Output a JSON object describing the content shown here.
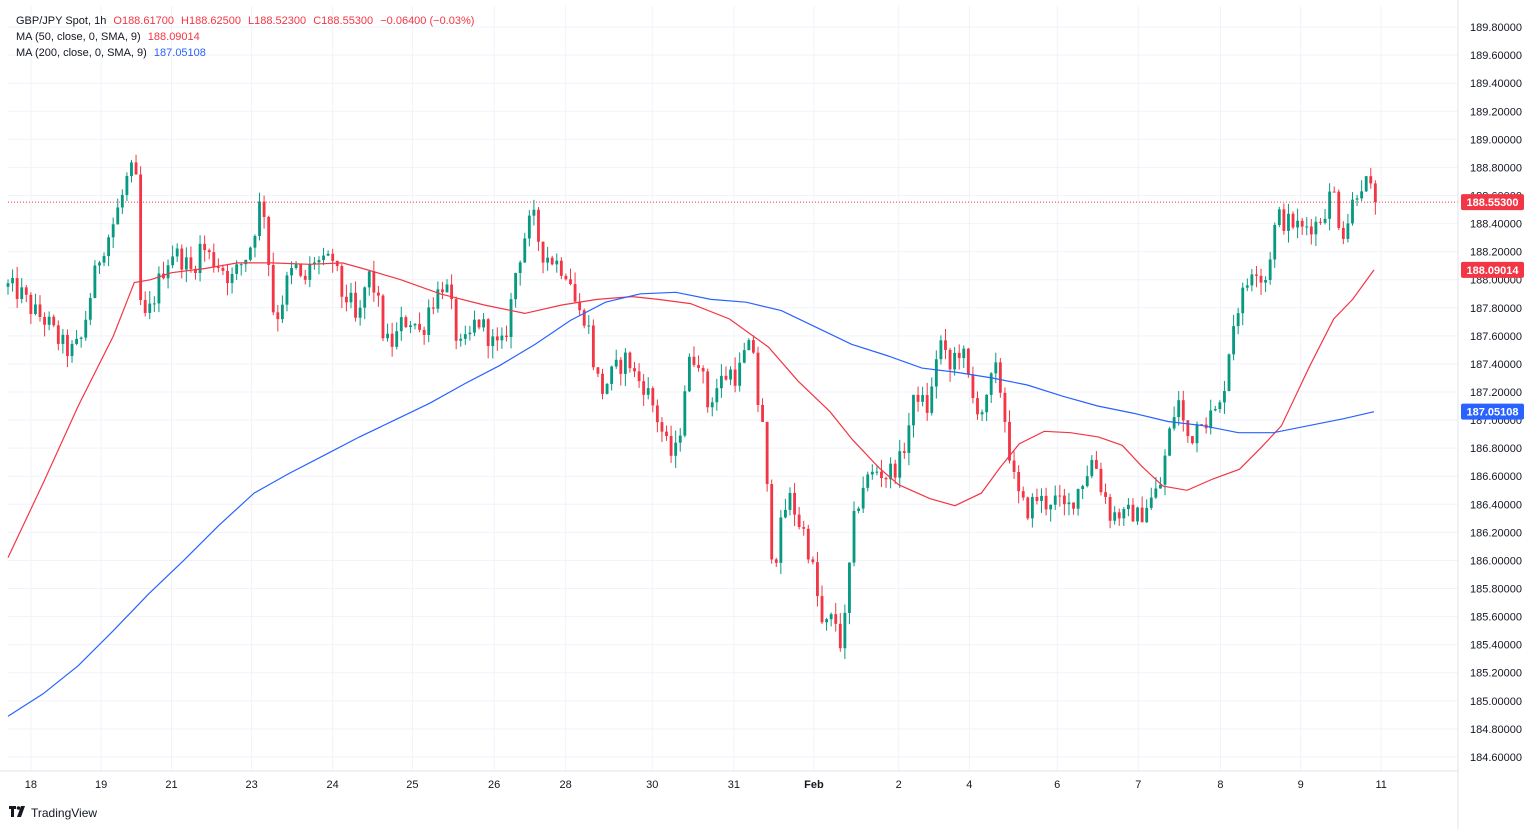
{
  "legend": {
    "symbol": "GBP/JPY Spot",
    "timeframe": "1h",
    "ohlc": {
      "open": "O188.61700",
      "high": "H188.62500",
      "low": "L188.52300",
      "close": "C188.55300",
      "change": "−0.06400 (−0.03%)"
    },
    "ma50": {
      "label": "MA (50, close, 0, SMA, 9)",
      "value": "188.09014"
    },
    "ma200": {
      "label": "MA (200, close, 0, SMA, 9)",
      "value": "187.05108"
    }
  },
  "brand": {
    "name": "TradingView",
    "logo_icon": "tradingview-logo-icon"
  },
  "colors": {
    "up": "#089981",
    "down": "#f23645",
    "ma50": "#f23645",
    "ma200": "#2962ff",
    "grid": "#f0f3fa",
    "text": "#131722"
  },
  "chart_data": {
    "type": "candlestick",
    "title": "",
    "y_axis": {
      "ylim": [
        184.5,
        189.95
      ],
      "ticks": [
        "184.60000",
        "184.80000",
        "185.00000",
        "185.20000",
        "185.40000",
        "185.60000",
        "185.80000",
        "186.00000",
        "186.20000",
        "186.40000",
        "186.60000",
        "186.80000",
        "187.00000",
        "187.20000",
        "187.40000",
        "187.60000",
        "187.80000",
        "188.00000",
        "188.20000",
        "188.40000",
        "188.60000",
        "188.80000",
        "189.00000",
        "189.20000",
        "189.40000",
        "189.60000",
        "189.80000"
      ],
      "position": "right"
    },
    "x_axis": {
      "labels": [
        "18",
        "19",
        "21",
        "23",
        "24",
        "25",
        "26",
        "28",
        "30",
        "31",
        "Feb",
        "2",
        "4",
        "6",
        "7",
        "8",
        "9",
        "11"
      ],
      "label_positions": [
        0.0158,
        0.0642,
        0.1128,
        0.168,
        0.2239,
        0.2789,
        0.3353,
        0.3846,
        0.4443,
        0.5006,
        0.5558,
        0.6143,
        0.663,
        0.7236,
        0.7795,
        0.8362,
        0.8915,
        0.947
      ]
    },
    "current_price": {
      "value": 188.553,
      "label": "188.55300"
    },
    "series": [
      {
        "name": "MA (50, close, 0, SMA, 9)",
        "value_label": "188.09014",
        "points": [
          [
            0.0,
            186.02
          ],
          [
            0.0242,
            186.55
          ],
          [
            0.0484,
            187.1
          ],
          [
            0.0727,
            187.6
          ],
          [
            0.0871,
            187.98
          ],
          [
            0.0984,
            188.0
          ],
          [
            0.1128,
            188.05
          ],
          [
            0.1359,
            188.08
          ],
          [
            0.1583,
            188.12
          ],
          [
            0.1819,
            188.12
          ],
          [
            0.2081,
            188.11
          ],
          [
            0.2306,
            188.12
          ],
          [
            0.2447,
            188.08
          ],
          [
            0.2708,
            188.0
          ],
          [
            0.298,
            187.9
          ],
          [
            0.3284,
            187.82
          ],
          [
            0.3564,
            187.76
          ],
          [
            0.3819,
            187.82
          ],
          [
            0.4062,
            187.86
          ],
          [
            0.4304,
            187.88
          ],
          [
            0.4485,
            187.86
          ],
          [
            0.4707,
            187.83
          ],
          [
            0.4976,
            187.72
          ],
          [
            0.5245,
            187.52
          ],
          [
            0.5447,
            187.28
          ],
          [
            0.5669,
            187.06
          ],
          [
            0.5824,
            186.86
          ],
          [
            0.6007,
            186.66
          ],
          [
            0.6142,
            186.54
          ],
          [
            0.6359,
            186.44
          ],
          [
            0.6531,
            186.39
          ],
          [
            0.6713,
            186.48
          ],
          [
            0.6841,
            186.66
          ],
          [
            0.6974,
            186.83
          ],
          [
            0.7146,
            186.92
          ],
          [
            0.7327,
            186.91
          ],
          [
            0.7519,
            186.88
          ],
          [
            0.7684,
            186.82
          ],
          [
            0.782,
            186.67
          ],
          [
            0.7965,
            186.53
          ],
          [
            0.8132,
            186.5
          ],
          [
            0.8309,
            186.58
          ],
          [
            0.8494,
            186.65
          ],
          [
            0.8638,
            186.8
          ],
          [
            0.8783,
            186.96
          ],
          [
            0.8975,
            187.38
          ],
          [
            0.9143,
            187.72
          ],
          [
            0.9273,
            187.86
          ],
          [
            0.9421,
            188.07
          ]
        ]
      },
      {
        "name": "MA (200, close, 0, SMA, 9)",
        "value_label": "187.05108",
        "points": [
          [
            0.0,
            184.89
          ],
          [
            0.0242,
            185.05
          ],
          [
            0.0484,
            185.25
          ],
          [
            0.0727,
            185.5
          ],
          [
            0.0969,
            185.76
          ],
          [
            0.1212,
            186.0
          ],
          [
            0.1454,
            186.25
          ],
          [
            0.1697,
            186.48
          ],
          [
            0.1939,
            186.62
          ],
          [
            0.2182,
            186.75
          ],
          [
            0.2424,
            186.88
          ],
          [
            0.2667,
            187.0
          ],
          [
            0.2909,
            187.12
          ],
          [
            0.3151,
            187.26
          ],
          [
            0.3394,
            187.39
          ],
          [
            0.3636,
            187.54
          ],
          [
            0.3879,
            187.71
          ],
          [
            0.4121,
            187.84
          ],
          [
            0.4363,
            187.9
          ],
          [
            0.4606,
            187.91
          ],
          [
            0.4848,
            187.86
          ],
          [
            0.5091,
            187.84
          ],
          [
            0.5333,
            187.78
          ],
          [
            0.5576,
            187.66
          ],
          [
            0.5818,
            187.54
          ],
          [
            0.6061,
            187.46
          ],
          [
            0.6303,
            187.37
          ],
          [
            0.6545,
            187.34
          ],
          [
            0.6788,
            187.3
          ],
          [
            0.703,
            187.25
          ],
          [
            0.7273,
            187.17
          ],
          [
            0.7515,
            187.1
          ],
          [
            0.7757,
            187.05
          ],
          [
            0.8,
            186.99
          ],
          [
            0.8242,
            186.96
          ],
          [
            0.8485,
            186.91
          ],
          [
            0.8727,
            186.91
          ],
          [
            0.8969,
            186.96
          ],
          [
            0.9212,
            187.01
          ],
          [
            0.9421,
            187.06
          ]
        ]
      }
    ],
    "candle_path": [
      [
        0.0,
        187.95
      ],
      [
        0.009,
        187.9
      ],
      [
        0.017,
        187.78
      ],
      [
        0.027,
        187.7
      ],
      [
        0.036,
        187.55
      ],
      [
        0.043,
        187.48
      ],
      [
        0.05,
        187.55
      ],
      [
        0.058,
        187.95
      ],
      [
        0.064,
        188.2
      ],
      [
        0.071,
        188.35
      ],
      [
        0.079,
        188.6
      ],
      [
        0.083,
        188.75
      ],
      [
        0.088,
        188.78
      ],
      [
        0.091,
        187.85
      ],
      [
        0.095,
        187.7
      ],
      [
        0.1,
        187.85
      ],
      [
        0.106,
        188.05
      ],
      [
        0.113,
        188.2
      ],
      [
        0.12,
        188.15
      ],
      [
        0.127,
        188.05
      ],
      [
        0.133,
        188.25
      ],
      [
        0.14,
        188.15
      ],
      [
        0.147,
        188.1
      ],
      [
        0.154,
        188.0
      ],
      [
        0.16,
        188.1
      ],
      [
        0.166,
        188.2
      ],
      [
        0.171,
        188.4
      ],
      [
        0.175,
        188.6
      ],
      [
        0.178,
        188.4
      ],
      [
        0.182,
        187.8
      ],
      [
        0.187,
        187.75
      ],
      [
        0.191,
        187.95
      ],
      [
        0.198,
        188.1
      ],
      [
        0.203,
        187.95
      ],
      [
        0.211,
        188.15
      ],
      [
        0.218,
        188.1
      ],
      [
        0.224,
        188.15
      ],
      [
        0.23,
        187.9
      ],
      [
        0.236,
        187.85
      ],
      [
        0.241,
        187.65
      ],
      [
        0.248,
        188.05
      ],
      [
        0.254,
        187.9
      ],
      [
        0.26,
        187.55
      ],
      [
        0.266,
        187.55
      ],
      [
        0.272,
        187.7
      ],
      [
        0.279,
        187.72
      ],
      [
        0.285,
        187.6
      ],
      [
        0.29,
        187.8
      ],
      [
        0.296,
        187.9
      ],
      [
        0.301,
        188.0
      ],
      [
        0.306,
        187.78
      ],
      [
        0.311,
        187.5
      ],
      [
        0.317,
        187.55
      ],
      [
        0.323,
        187.72
      ],
      [
        0.329,
        187.65
      ],
      [
        0.334,
        187.55
      ],
      [
        0.34,
        187.5
      ],
      [
        0.345,
        187.7
      ],
      [
        0.35,
        188.05
      ],
      [
        0.356,
        188.3
      ],
      [
        0.362,
        188.45
      ],
      [
        0.368,
        188.2
      ],
      [
        0.375,
        188.15
      ],
      [
        0.381,
        188.1
      ],
      [
        0.387,
        188.05
      ],
      [
        0.393,
        187.75
      ],
      [
        0.399,
        187.75
      ],
      [
        0.404,
        187.4
      ],
      [
        0.409,
        187.2
      ],
      [
        0.415,
        187.3
      ],
      [
        0.421,
        187.38
      ],
      [
        0.427,
        187.45
      ],
      [
        0.433,
        187.3
      ],
      [
        0.439,
        187.25
      ],
      [
        0.445,
        187.1
      ],
      [
        0.451,
        186.92
      ],
      [
        0.456,
        186.75
      ],
      [
        0.462,
        186.78
      ],
      [
        0.466,
        187.2
      ],
      [
        0.471,
        187.45
      ],
      [
        0.477,
        187.45
      ],
      [
        0.482,
        187.1
      ],
      [
        0.487,
        187.2
      ],
      [
        0.493,
        187.3
      ],
      [
        0.499,
        187.35
      ],
      [
        0.503,
        187.3
      ],
      [
        0.507,
        187.45
      ],
      [
        0.511,
        187.5
      ],
      [
        0.515,
        187.5
      ],
      [
        0.518,
        187.0
      ],
      [
        0.522,
        186.9
      ],
      [
        0.525,
        186.1
      ],
      [
        0.53,
        186.05
      ],
      [
        0.535,
        186.35
      ],
      [
        0.54,
        186.45
      ],
      [
        0.544,
        186.3
      ],
      [
        0.549,
        186.2
      ],
      [
        0.554,
        186.0
      ],
      [
        0.558,
        185.75
      ],
      [
        0.562,
        185.5
      ],
      [
        0.566,
        185.55
      ],
      [
        0.57,
        185.6
      ],
      [
        0.574,
        185.42
      ],
      [
        0.578,
        185.6
      ],
      [
        0.582,
        186.2
      ],
      [
        0.586,
        186.4
      ],
      [
        0.59,
        186.55
      ],
      [
        0.595,
        186.6
      ],
      [
        0.6,
        186.65
      ],
      [
        0.605,
        186.6
      ],
      [
        0.61,
        186.65
      ],
      [
        0.615,
        186.7
      ],
      [
        0.619,
        186.85
      ],
      [
        0.624,
        187.1
      ],
      [
        0.628,
        187.2
      ],
      [
        0.633,
        187.05
      ],
      [
        0.637,
        187.2
      ],
      [
        0.642,
        187.6
      ],
      [
        0.646,
        187.45
      ],
      [
        0.65,
        187.35
      ],
      [
        0.654,
        187.5
      ],
      [
        0.658,
        187.5
      ],
      [
        0.662,
        187.3
      ],
      [
        0.666,
        187.12
      ],
      [
        0.67,
        187.1
      ],
      [
        0.674,
        187.05
      ],
      [
        0.677,
        187.25
      ],
      [
        0.681,
        187.35
      ],
      [
        0.685,
        187.2
      ],
      [
        0.689,
        186.9
      ],
      [
        0.693,
        186.6
      ],
      [
        0.697,
        186.45
      ],
      [
        0.702,
        186.35
      ],
      [
        0.706,
        186.4
      ],
      [
        0.71,
        186.45
      ],
      [
        0.715,
        186.4
      ],
      [
        0.72,
        186.45
      ],
      [
        0.725,
        186.4
      ],
      [
        0.73,
        186.35
      ],
      [
        0.735,
        186.45
      ],
      [
        0.74,
        186.55
      ],
      [
        0.745,
        186.65
      ],
      [
        0.749,
        186.75
      ],
      [
        0.753,
        186.55
      ],
      [
        0.757,
        186.45
      ],
      [
        0.761,
        186.3
      ],
      [
        0.765,
        186.35
      ],
      [
        0.77,
        186.3
      ],
      [
        0.775,
        186.35
      ],
      [
        0.78,
        186.3
      ],
      [
        0.785,
        186.4
      ],
      [
        0.79,
        186.45
      ],
      [
        0.795,
        186.55
      ],
      [
        0.799,
        186.8
      ],
      [
        0.803,
        187.0
      ],
      [
        0.807,
        187.15
      ],
      [
        0.811,
        186.95
      ],
      [
        0.815,
        186.85
      ],
      [
        0.819,
        186.95
      ],
      [
        0.823,
        187.05
      ],
      [
        0.827,
        187.0
      ],
      [
        0.831,
        187.05
      ],
      [
        0.835,
        187.05
      ],
      [
        0.838,
        187.2
      ],
      [
        0.842,
        187.5
      ],
      [
        0.846,
        187.75
      ],
      [
        0.85,
        187.85
      ],
      [
        0.854,
        187.95
      ],
      [
        0.858,
        188.1
      ],
      [
        0.862,
        188.1
      ],
      [
        0.866,
        187.95
      ],
      [
        0.869,
        188.1
      ],
      [
        0.873,
        188.35
      ],
      [
        0.877,
        188.45
      ],
      [
        0.882,
        188.4
      ],
      [
        0.887,
        188.4
      ],
      [
        0.892,
        188.35
      ],
      [
        0.897,
        188.4
      ],
      [
        0.902,
        188.4
      ],
      [
        0.906,
        188.45
      ],
      [
        0.91,
        188.55
      ],
      [
        0.914,
        188.65
      ],
      [
        0.917,
        188.45
      ],
      [
        0.921,
        188.35
      ],
      [
        0.925,
        188.45
      ],
      [
        0.929,
        188.62
      ],
      [
        0.933,
        188.7
      ],
      [
        0.937,
        188.68
      ],
      [
        0.94,
        188.62
      ],
      [
        0.943,
        188.55
      ]
    ],
    "candle_count": 300
  }
}
